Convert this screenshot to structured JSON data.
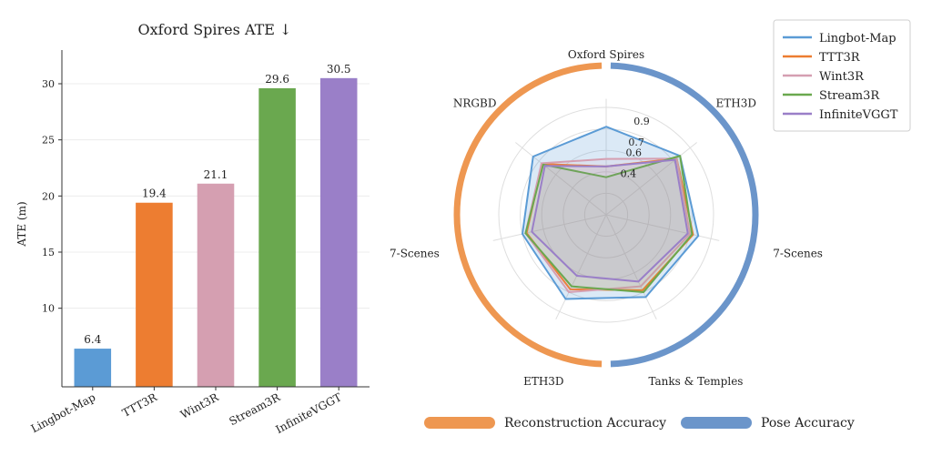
{
  "chart_data": [
    {
      "type": "bar",
      "title": "Oxford Spires ATE ↓",
      "xlabel": "",
      "ylabel": "ATE (m)",
      "ylim": [
        3,
        33
      ],
      "yticks": [
        10,
        15,
        20,
        25,
        30
      ],
      "grid": true,
      "categories": [
        "Lingbot-Map",
        "TTT3R",
        "Wint3R",
        "Stream3R",
        "InfiniteVGGT"
      ],
      "values": [
        6.4,
        19.4,
        21.1,
        29.6,
        30.5
      ],
      "value_labels": [
        "6.4",
        "19.4",
        "21.1",
        "29.6",
        "30.5"
      ],
      "colors": [
        "#5b9bd5",
        "#ed7d31",
        "#d59fb1",
        "#6aa84f",
        "#9a7fc8"
      ]
    },
    {
      "type": "radar",
      "axes": [
        "Oxford Spires",
        "ETH3D",
        "7-Scenes",
        "Tanks & Temples",
        "ETH3D",
        "7-Scenes",
        "NRGBD"
      ],
      "rlim": [
        0.0,
        1.0
      ],
      "ring_ticks": [
        0.4,
        0.6,
        0.7,
        0.9
      ],
      "ring_tick_labels": [
        "0.4",
        "0.6",
        "0.7",
        "0.9"
      ],
      "series": [
        {
          "name": "Lingbot-Map",
          "color": "#5b9bd5",
          "values": [
            0.82,
            0.88,
            0.88,
            0.85,
            0.87,
            0.8,
            0.87
          ]
        },
        {
          "name": "TTT3R",
          "color": "#ed7d31",
          "values": [
            0.45,
            0.84,
            0.83,
            0.78,
            0.77,
            0.76,
            0.76
          ]
        },
        {
          "name": "Wint3R",
          "color": "#d59fb1",
          "values": [
            0.52,
            0.84,
            0.8,
            0.74,
            0.8,
            0.77,
            0.77
          ]
        },
        {
          "name": "Stream3R",
          "color": "#6aa84f",
          "values": [
            0.35,
            0.88,
            0.82,
            0.8,
            0.74,
            0.77,
            0.75
          ]
        },
        {
          "name": "InfiniteVGGT",
          "color": "#9a7fc8",
          "values": [
            0.45,
            0.82,
            0.78,
            0.69,
            0.63,
            0.71,
            0.73
          ]
        }
      ],
      "groups": [
        {
          "label": "Reconstruction Accuracy",
          "color": "#ec8c3e",
          "text_color": "#d96a1c"
        },
        {
          "label": "Pose Accuracy",
          "color": "#5b8ac4",
          "text_color": "#3f7ab8"
        }
      ]
    }
  ]
}
